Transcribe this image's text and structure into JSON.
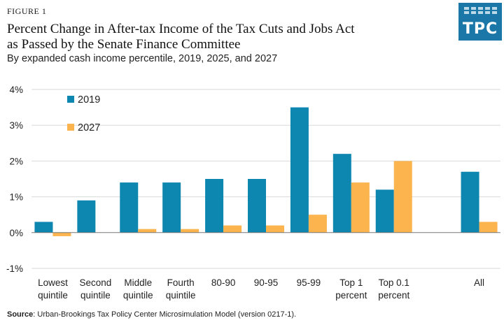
{
  "figure_label": "FIGURE 1",
  "title_line1": "Percent Change in After-tax Income of the Tax Cuts and Jobs Act",
  "title_line2": "as Passed by the Senate Finance Committee",
  "subtitle": "By expanded cash income percentile, 2019, 2025, and 2027",
  "logo_text": "TPC",
  "source_label": "Source",
  "source_text": ": Urban-Brookings Tax Policy Center Microsimulation Model (version 0217-1).",
  "colors": {
    "series_2019": "#0d86b0",
    "series_2027": "#fbb44e"
  },
  "chart_data": {
    "type": "bar",
    "categories": [
      [
        "Lowest",
        "quintile"
      ],
      [
        "Second",
        "quintile"
      ],
      [
        "Middle",
        "quintile"
      ],
      [
        "Fourth",
        "quintile"
      ],
      [
        "80-90"
      ],
      [
        "90-95"
      ],
      [
        "95-99"
      ],
      [
        "Top 1",
        "percent"
      ],
      [
        "Top 0.1",
        "percent"
      ],
      [
        ""
      ],
      [
        "All"
      ]
    ],
    "series": [
      {
        "name": "2019",
        "values": [
          0.3,
          0.9,
          1.4,
          1.4,
          1.5,
          1.5,
          3.5,
          2.2,
          1.2,
          null,
          1.7
        ]
      },
      {
        "name": "2027",
        "values": [
          -0.1,
          0.0,
          0.1,
          0.1,
          0.2,
          0.2,
          0.5,
          1.4,
          2.0,
          null,
          0.3
        ]
      }
    ],
    "yticks": [
      4,
      3,
      2,
      1,
      0,
      -1
    ],
    "ytick_labels": [
      "4%",
      "3%",
      "2%",
      "1%",
      "0%",
      "-1%"
    ],
    "ylim": [
      -1,
      4
    ],
    "grid": true,
    "legend_position": "top-left"
  }
}
